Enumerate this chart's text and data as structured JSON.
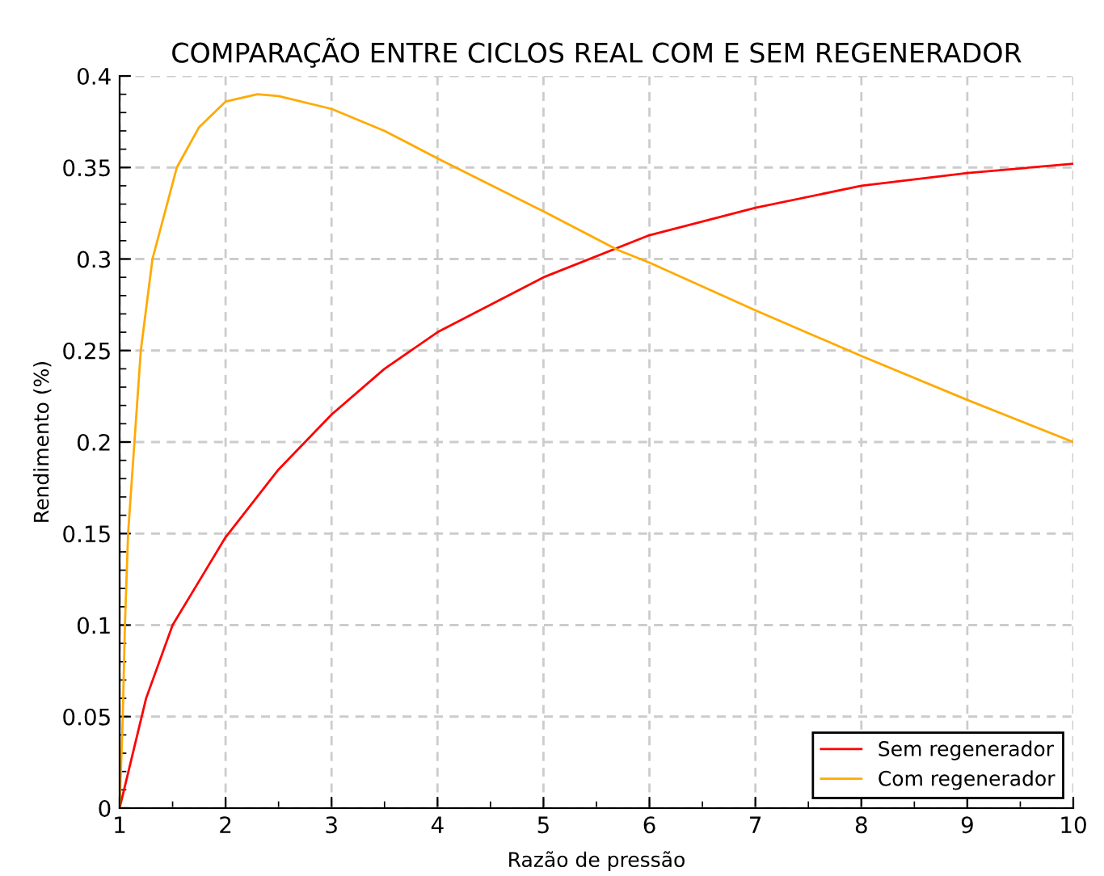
{
  "chart_data": {
    "type": "line",
    "title": "COMPARAÇÃO ENTRE CICLOS REAL COM E SEM REGENERADOR",
    "xlabel": "Razão de pressão",
    "ylabel": "Rendimento (%)",
    "xlim": [
      1,
      10
    ],
    "ylim": [
      0,
      0.4
    ],
    "xticks": [
      1,
      2,
      3,
      4,
      5,
      6,
      7,
      8,
      9,
      10
    ],
    "yticks": [
      0,
      0.05,
      0.1,
      0.15,
      0.2,
      0.25,
      0.3,
      0.35,
      0.4
    ],
    "grid": true,
    "legend": "bottom right",
    "line_style": "solid",
    "marker": "none",
    "series": [
      {
        "name": "Sem regenerador",
        "color": "#ff0000",
        "x": [
          1,
          1.25,
          1.5,
          2,
          2.5,
          3,
          3.5,
          4,
          5,
          6,
          7,
          8,
          9,
          10
        ],
        "values": [
          0,
          0.06,
          0.1,
          0.148,
          0.185,
          0.215,
          0.24,
          0.26,
          0.29,
          0.313,
          0.328,
          0.34,
          0.347,
          0.352
        ]
      },
      {
        "name": "Com regenerador",
        "color": "#ffaa00",
        "x": [
          1,
          1.03,
          1.05,
          1.08,
          1.14,
          1.2,
          1.31,
          1.54,
          1.75,
          2,
          2.3,
          2.5,
          3,
          3.5,
          4,
          5,
          5.7,
          6,
          7,
          8,
          9,
          10
        ],
        "values": [
          0,
          0.05,
          0.1,
          0.15,
          0.2,
          0.25,
          0.3,
          0.35,
          0.372,
          0.386,
          0.39,
          0.389,
          0.382,
          0.37,
          0.355,
          0.326,
          0.305,
          0.298,
          0.272,
          0.247,
          0.223,
          0.2
        ]
      }
    ]
  }
}
